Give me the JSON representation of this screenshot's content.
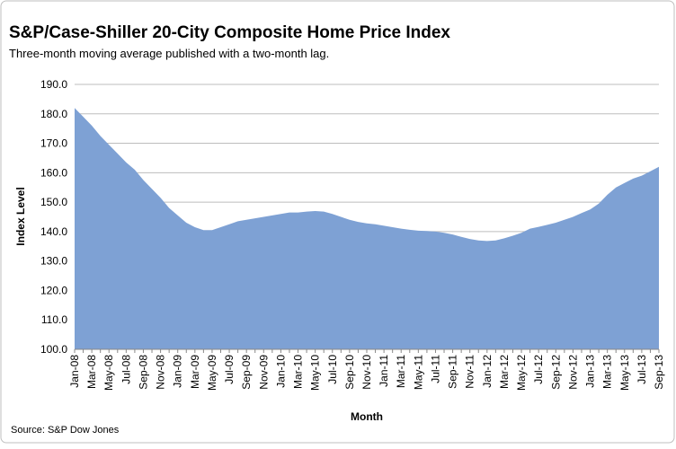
{
  "chart_data": {
    "type": "area",
    "title": "S&P/Case-Shiller 20-City Composite Home Price Index",
    "subtitle": "Three-month moving average published with a two-month lag.",
    "ylabel": "Index Level",
    "xlabel": "Month",
    "source": "Source:  S&P Dow Jones",
    "color": "#7ea1d4",
    "grid": true,
    "categories": [
      "Jan-08",
      null,
      "Mar-08",
      null,
      "May-08",
      null,
      "Jul-08",
      null,
      "Sep-08",
      null,
      "Nov-08",
      null,
      "Jan-09",
      null,
      "Mar-09",
      null,
      "May-09",
      null,
      "Jul-09",
      null,
      "Sep-09",
      null,
      "Nov-09",
      null,
      "Jan-10",
      null,
      "Mar-10",
      null,
      "May-10",
      null,
      "Jul-10",
      null,
      "Sep-10",
      null,
      "Nov-10",
      null,
      "Jan-11",
      null,
      "Mar-11",
      null,
      "May-11",
      null,
      "Jul-11",
      null,
      "Sep-11",
      null,
      "Nov-11",
      null,
      "Jan-12",
      null,
      "Mar-12",
      null,
      "May-12",
      null,
      "Jul-12",
      null,
      "Sep-12",
      null,
      "Nov-12",
      null,
      "Jan-13",
      null,
      "Mar-13",
      null,
      "May-13",
      null,
      "Jul-13",
      null,
      "Sep-13"
    ],
    "values": [
      182,
      179,
      176,
      172.5,
      169.5,
      166.5,
      163.5,
      161,
      157.5,
      154.5,
      151.5,
      148,
      145.5,
      143,
      141.5,
      140.5,
      140.5,
      141.5,
      142.5,
      143.5,
      144,
      144.5,
      145,
      145.5,
      146,
      146.5,
      146.5,
      146.8,
      147,
      146.8,
      146,
      145,
      144,
      143.3,
      142.8,
      142.5,
      142,
      141.5,
      141,
      140.6,
      140.3,
      140.2,
      140,
      139.6,
      139,
      138.2,
      137.5,
      137,
      136.8,
      137,
      137.7,
      138.6,
      139.6,
      141,
      141.6,
      142.3,
      143,
      144,
      145,
      146.3,
      147.5,
      149.5,
      152.5,
      155,
      156.5,
      158,
      159,
      160.5,
      162
    ],
    "ylim": [
      100,
      190
    ],
    "yticks": [
      {
        "value": 100,
        "label": "100.0"
      },
      {
        "value": 110,
        "label": "110.0"
      },
      {
        "value": 120,
        "label": "120.0"
      },
      {
        "value": 130,
        "label": "130.0"
      },
      {
        "value": 140,
        "label": "140.0"
      },
      {
        "value": 150,
        "label": "150.0"
      },
      {
        "value": 160,
        "label": "160.0"
      },
      {
        "value": 170,
        "label": "170.0"
      },
      {
        "value": 180,
        "label": "180.0"
      },
      {
        "value": 190,
        "label": "190.0"
      }
    ]
  }
}
